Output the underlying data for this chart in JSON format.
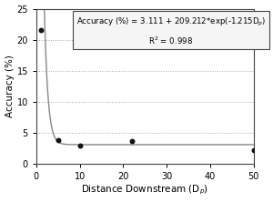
{
  "scatter_x": [
    1,
    5,
    10,
    22,
    50
  ],
  "scatter_y": [
    21.5,
    3.9,
    3.0,
    3.7,
    2.2
  ],
  "curve_a": 3.111,
  "curve_b": 209.212,
  "curve_c": -1.215,
  "xlabel": "Distance Downstream (D$_p$)",
  "ylabel": "Accuracy (%)",
  "xlim": [
    0,
    50
  ],
  "ylim": [
    0,
    25
  ],
  "xticks": [
    0,
    10,
    20,
    30,
    40,
    50
  ],
  "yticks": [
    0,
    5,
    10,
    15,
    20,
    25
  ],
  "annotation_line1": "Accuracy (%) = 3.111 + 209.212*exp(-1.215D$_p$)",
  "annotation_line2": "R$^2$ = 0.998",
  "grid_color": "#aaaaaa",
  "curve_color": "#888888",
  "scatter_color": "#111111",
  "box_facecolor": "#f5f5f5",
  "box_edgecolor": "#444444"
}
